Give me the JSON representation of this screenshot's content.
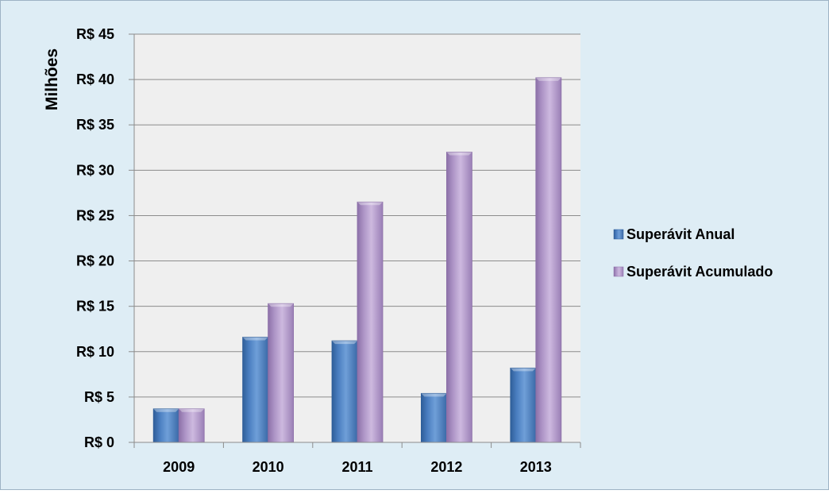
{
  "chart_data": {
    "type": "bar",
    "title": "",
    "xlabel": "",
    "ylabel": "Milhões",
    "categories": [
      "2009",
      "2010",
      "2011",
      "2012",
      "2013"
    ],
    "series": [
      {
        "name": "Superávit Anual",
        "values": [
          3.7,
          11.6,
          11.2,
          5.4,
          8.2
        ]
      },
      {
        "name": "Superávit Acumulado",
        "values": [
          3.7,
          15.3,
          26.5,
          32.0,
          40.2
        ]
      }
    ],
    "ylim": [
      0,
      45
    ],
    "yticks": [
      0,
      5,
      10,
      15,
      20,
      25,
      30,
      35,
      40,
      45
    ],
    "ytick_labels": [
      "R$ 0",
      "R$ 5",
      "R$ 10",
      "R$ 15",
      "R$ 20",
      "R$ 25",
      "R$ 30",
      "R$ 35",
      "R$ 40",
      "R$ 45"
    ],
    "grid": true,
    "legend_position": "right",
    "colors": {
      "background": "#deedf5",
      "plot_area": "#efefef",
      "gridline": "#8c8c8c",
      "series_anual": "#4f81bd",
      "series_acumulado": "#b7a0cc"
    }
  }
}
